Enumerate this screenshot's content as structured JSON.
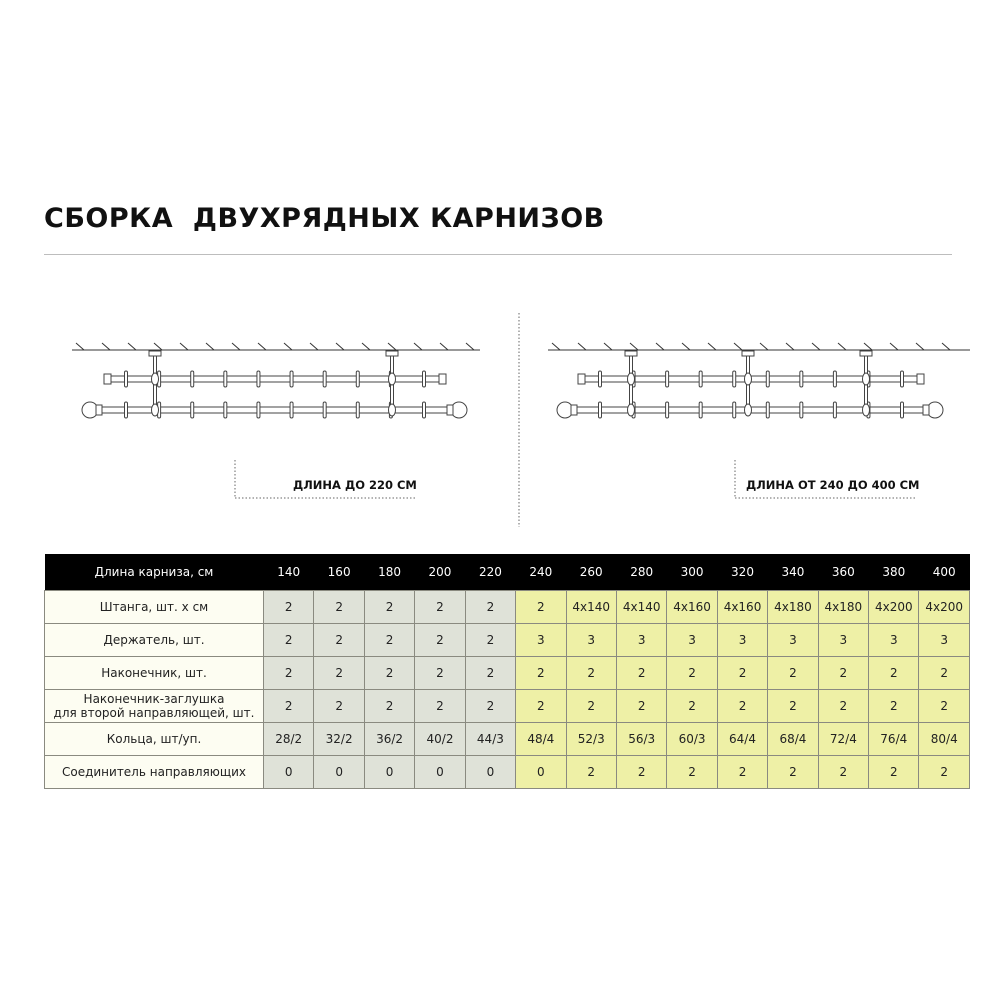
{
  "title": "СБОРКА  ДВУХРЯДНЫХ КАРНИЗОВ",
  "diagrams": [
    {
      "caption": "ДЛИНА ДО 220 СМ",
      "holders": 2
    },
    {
      "caption": "ДЛИНА ОТ 240 ДО 400 СМ",
      "holders": 3
    }
  ],
  "colors": {
    "header_bg": "#000000",
    "label_bg": "#fdfdf2",
    "short_bg": "#dfe2d8",
    "long_bg": "#eef0a6"
  },
  "table": {
    "header_label": "Длина карниза, см",
    "lengths": [
      "140",
      "160",
      "180",
      "200",
      "220",
      "240",
      "260",
      "280",
      "300",
      "320",
      "340",
      "360",
      "380",
      "400"
    ],
    "rows": [
      {
        "label": "Штанга, шт. х см",
        "values": [
          "2",
          "2",
          "2",
          "2",
          "2",
          "2",
          "4х140",
          "4х140",
          "4х160",
          "4х160",
          "4х180",
          "4х180",
          "4х200",
          "4х200"
        ]
      },
      {
        "label": "Держатель, шт.",
        "values": [
          "2",
          "2",
          "2",
          "2",
          "2",
          "3",
          "3",
          "3",
          "3",
          "3",
          "3",
          "3",
          "3",
          "3"
        ]
      },
      {
        "label": "Наконечник, шт.",
        "values": [
          "2",
          "2",
          "2",
          "2",
          "2",
          "2",
          "2",
          "2",
          "2",
          "2",
          "2",
          "2",
          "2",
          "2"
        ]
      },
      {
        "label": "Наконечник-заглушка\nдля второй направляющей, шт.",
        "values": [
          "2",
          "2",
          "2",
          "2",
          "2",
          "2",
          "2",
          "2",
          "2",
          "2",
          "2",
          "2",
          "2",
          "2"
        ]
      },
      {
        "label": "Кольца, шт/уп.",
        "values": [
          "28/2",
          "32/2",
          "36/2",
          "40/2",
          "44/3",
          "48/4",
          "52/3",
          "56/3",
          "60/3",
          "64/4",
          "68/4",
          "72/4",
          "76/4",
          "80/4"
        ]
      },
      {
        "label": "Соединитель направляющих",
        "values": [
          "0",
          "0",
          "0",
          "0",
          "0",
          "0",
          "2",
          "2",
          "2",
          "2",
          "2",
          "2",
          "2",
          "2"
        ]
      }
    ]
  }
}
